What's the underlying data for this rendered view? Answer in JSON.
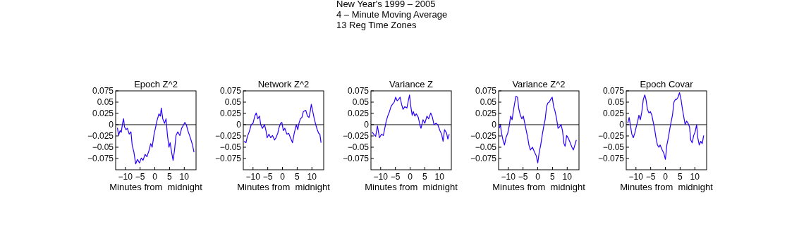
{
  "chart_data": [
    {
      "type": "line",
      "title": "Epoch  Z^2",
      "xlabel": "Minutes from  midnight",
      "annotations": [
        "New Year's 1999 – 2005",
        "4 – Minute Moving Average",
        "13 Reg Time Zones"
      ],
      "xlim": [
        -13.3,
        14
      ],
      "ylim": [
        -0.1,
        0.075
      ],
      "xticks": [
        -10,
        -5,
        0,
        5,
        10
      ],
      "yticks": [
        -0.075,
        -0.05,
        -0.025,
        0,
        0.025,
        0.05,
        0.075
      ],
      "ref_lines": [
        {
          "axis": "y",
          "value": 0,
          "color": "#000000"
        }
      ],
      "grid": false,
      "x": [
        -12.7,
        -12.3,
        -11.8,
        -11.4,
        -10.9,
        -10.6,
        -10.3,
        -9.8,
        -9.3,
        -8.7,
        -8.1,
        -7.7,
        -7.1,
        -6.5,
        -5.9,
        -5.2,
        -4.6,
        -4.0,
        -3.3,
        -2.7,
        -2.0,
        -1.4,
        -0.9,
        -0.2,
        0.2,
        0.7,
        1.4,
        1.9,
        2.2,
        2.7,
        3.3,
        3.8,
        4.3,
        4.8,
        5.2,
        5.7,
        6.2,
        6.7,
        7.2,
        7.8,
        8.5,
        9.1,
        9.8,
        10.2,
        10.7,
        11.2,
        11.9,
        12.3,
        12.8,
        13.3
      ],
      "series": [
        {
          "color": "#2a00ff",
          "values": [
            -0.007,
            -0.024,
            -0.013,
            -0.017,
            0.005,
            0.013,
            -0.005,
            -0.011,
            -0.008,
            -0.021,
            -0.016,
            -0.045,
            -0.061,
            -0.087,
            -0.077,
            -0.085,
            -0.074,
            -0.079,
            -0.066,
            -0.071,
            -0.058,
            -0.042,
            -0.05,
            -0.019,
            -0.008,
            0.008,
            0.024,
            0.019,
            0.037,
            0.013,
            0.003,
            0.013,
            -0.024,
            -0.05,
            -0.04,
            -0.061,
            -0.079,
            -0.056,
            -0.024,
            -0.016,
            -0.024,
            -0.008,
            0,
            0.005,
            0,
            -0.013,
            -0.026,
            -0.034,
            -0.045,
            -0.061
          ]
        }
      ]
    },
    {
      "type": "line",
      "title": "Network  Z^2",
      "xlabel": "Minutes from  midnight",
      "xlim": [
        -13.3,
        14
      ],
      "ylim": [
        -0.1,
        0.075
      ],
      "xticks": [
        -10,
        -5,
        0,
        5,
        10
      ],
      "yticks": [
        -0.075,
        -0.05,
        -0.025,
        0,
        0.025,
        0.05,
        0.075
      ],
      "ref_lines": [
        {
          "axis": "y",
          "value": 0,
          "color": "#000000"
        }
      ],
      "grid": false,
      "x": [
        -13.1,
        -12.4,
        -11.9,
        -11.3,
        -10.6,
        -10.0,
        -9.4,
        -8.9,
        -8.4,
        -7.8,
        -7.4,
        -6.8,
        -6.1,
        -5.6,
        -5.2,
        -4.6,
        -4.0,
        -3.4,
        -2.7,
        -2.2,
        -1.6,
        -1.1,
        -0.6,
        -0.2,
        0.3,
        0.8,
        1.5,
        2.1,
        2.7,
        3.4,
        4.0,
        4.7,
        5.2,
        5.6,
        6.1,
        6.6,
        7.1,
        7.9,
        8.5,
        9.0,
        9.5,
        9.8,
        10.3,
        10.8,
        11.3,
        11.8,
        12.3,
        12.7,
        13.1
      ],
      "series": [
        {
          "color": "#2a00ff",
          "values": [
            -0.037,
            -0.04,
            -0.026,
            -0.016,
            0,
            0.003,
            0.019,
            0.026,
            0.013,
            0.019,
            0,
            -0.008,
            0,
            -0.013,
            -0.029,
            -0.021,
            -0.029,
            -0.024,
            -0.034,
            -0.029,
            -0.019,
            -0.005,
            0.003,
            0.005,
            -0.013,
            -0.008,
            -0.021,
            -0.019,
            -0.029,
            -0.04,
            -0.019,
            0,
            -0.011,
            0.003,
            0.013,
            0.016,
            0.029,
            0.032,
            0.019,
            0.016,
            0.032,
            0.045,
            0.029,
            0.013,
            0,
            -0.011,
            -0.019,
            -0.021,
            -0.04
          ]
        }
      ]
    },
    {
      "type": "line",
      "title": "Variance Z",
      "xlabel": "Minutes from  midnight",
      "xlim": [
        -13.3,
        14
      ],
      "ylim": [
        -0.1,
        0.075
      ],
      "xticks": [
        -10,
        -5,
        0,
        5,
        10
      ],
      "yticks": [
        -0.075,
        -0.05,
        -0.025,
        0,
        0.025,
        0.05,
        0.075
      ],
      "ref_lines": [
        {
          "axis": "y",
          "value": 0,
          "color": "#000000"
        }
      ],
      "grid": false,
      "x": [
        -12.9,
        -12.4,
        -11.7,
        -11.1,
        -10.4,
        -9.7,
        -9.1,
        -8.6,
        -8.1,
        -7.6,
        -7.0,
        -6.5,
        -6.0,
        -5.4,
        -4.9,
        -4.4,
        -3.9,
        -3.4,
        -2.9,
        -2.4,
        -1.8,
        -1.1,
        -0.7,
        -0.2,
        0.2,
        0.7,
        1.1,
        1.6,
        2.1,
        2.8,
        3.3,
        3.7,
        4.4,
        5.0,
        5.7,
        6.3,
        7.0,
        7.6,
        8.1,
        8.8,
        9.4,
        10.1,
        10.7,
        11.2,
        11.7,
        12.4,
        12.8,
        13.3
      ],
      "series": [
        {
          "color": "#2a00ff",
          "values": [
            -0.016,
            -0.021,
            -0.026,
            -0.003,
            -0.029,
            -0.021,
            -0.024,
            -0.008,
            0.008,
            0.019,
            0.029,
            0.04,
            0.045,
            0.05,
            0.061,
            0.053,
            0.056,
            0.061,
            0.045,
            0.034,
            0.04,
            0.037,
            0.05,
            0.066,
            0.042,
            0.021,
            0.029,
            0.019,
            0.024,
            0.016,
            0,
            -0.008,
            0.011,
            0.003,
            0.019,
            0.013,
            0.026,
            0.016,
            0,
            0.003,
            0,
            -0.013,
            -0.021,
            -0.037,
            -0.011,
            -0.019,
            -0.032,
            -0.021
          ]
        }
      ]
    },
    {
      "type": "line",
      "title": "Variance Z^2",
      "xlabel": "Minutes from  midnight",
      "xlim": [
        -13.3,
        14
      ],
      "ylim": [
        -0.1,
        0.075
      ],
      "xticks": [
        -10,
        -5,
        0,
        5,
        10
      ],
      "yticks": [
        -0.075,
        -0.05,
        -0.025,
        0,
        0.025,
        0.05,
        0.075
      ],
      "ref_lines": [
        {
          "axis": "y",
          "value": 0,
          "color": "#000000"
        }
      ],
      "grid": false,
      "x": [
        -13.1,
        -12.7,
        -12.3,
        -11.8,
        -11.3,
        -10.8,
        -10.2,
        -9.7,
        -9.2,
        -8.7,
        -8.2,
        -7.7,
        -7.4,
        -6.9,
        -6.4,
        -5.9,
        -5.4,
        -4.9,
        -4.4,
        -3.9,
        -3.4,
        -3.0,
        -2.5,
        -1.8,
        -1.1,
        -0.5,
        0,
        0.5,
        1.0,
        1.5,
        2.0,
        2.5,
        3.0,
        3.4,
        3.9,
        4.4,
        4.9,
        5.4,
        5.9,
        6.4,
        6.9,
        7.4,
        7.9,
        8.4,
        8.9,
        9.3,
        9.8,
        10.3,
        11.0,
        11.6,
        12.1,
        12.6,
        13.1
      ],
      "series": [
        {
          "color": "#2a00ff",
          "values": [
            -0.008,
            0,
            -0.019,
            -0.034,
            -0.045,
            -0.029,
            -0.019,
            -0.003,
            0.019,
            0.011,
            0.034,
            0.053,
            0.063,
            0.061,
            0.034,
            0.021,
            0.013,
            0.019,
            0.003,
            -0.013,
            -0.029,
            -0.045,
            -0.056,
            -0.05,
            -0.061,
            -0.069,
            -0.085,
            -0.061,
            -0.045,
            -0.024,
            -0.005,
            0.011,
            0.04,
            0.048,
            0.05,
            0.056,
            0.061,
            0.04,
            0.029,
            0.013,
            -0.008,
            -0.005,
            0,
            -0.013,
            -0.042,
            -0.048,
            -0.024,
            -0.029,
            -0.04,
            -0.05,
            -0.056,
            -0.045,
            -0.034
          ]
        }
      ]
    },
    {
      "type": "line",
      "title": "Epoch  Covar",
      "xlabel": "Minutes from  midnight",
      "xlim": [
        -13.3,
        14
      ],
      "ylim": [
        -0.1,
        0.075
      ],
      "xticks": [
        -10,
        -5,
        0,
        5,
        10
      ],
      "yticks": [
        -0.075,
        -0.05,
        -0.025,
        0,
        0.025,
        0.05,
        0.075
      ],
      "ref_lines": [
        {
          "axis": "y",
          "value": 0,
          "color": "#000000"
        }
      ],
      "grid": false,
      "x": [
        -12.8,
        -12.3,
        -11.8,
        -11.4,
        -10.9,
        -10.4,
        -9.9,
        -9.4,
        -9.0,
        -8.5,
        -8.0,
        -7.5,
        -7.0,
        -6.6,
        -6.1,
        -5.6,
        -5.1,
        -4.6,
        -4.2,
        -3.7,
        -3.2,
        -2.7,
        -2.2,
        -1.8,
        -1.1,
        -0.5,
        0,
        0.5,
        1.0,
        1.4,
        1.9,
        2.4,
        2.9,
        3.4,
        3.8,
        4.3,
        4.8,
        5.3,
        5.8,
        6.2,
        6.7,
        7.2,
        7.7,
        8.2,
        8.6,
        9.1,
        9.6,
        10.1,
        10.6,
        11.0,
        11.5,
        12.0,
        12.5,
        13.0
      ],
      "series": [
        {
          "color": "#2a00ff",
          "values": [
            0.003,
            0.016,
            -0.005,
            -0.021,
            -0.029,
            -0.019,
            -0.005,
            0.008,
            0.021,
            0.011,
            0.029,
            0.056,
            0.066,
            0.056,
            0.034,
            0.026,
            0.029,
            0.021,
            0.008,
            -0.008,
            -0.029,
            -0.045,
            -0.05,
            -0.045,
            -0.056,
            -0.064,
            -0.077,
            -0.045,
            -0.029,
            -0.013,
            0.005,
            0.021,
            0.05,
            0.056,
            0.056,
            0.061,
            0.071,
            0.056,
            0.034,
            0.019,
            0,
            0.008,
            0.003,
            -0.005,
            -0.034,
            -0.04,
            -0.024,
            -0.016,
            0,
            -0.029,
            -0.045,
            -0.037,
            -0.042,
            -0.024
          ]
        }
      ]
    }
  ]
}
